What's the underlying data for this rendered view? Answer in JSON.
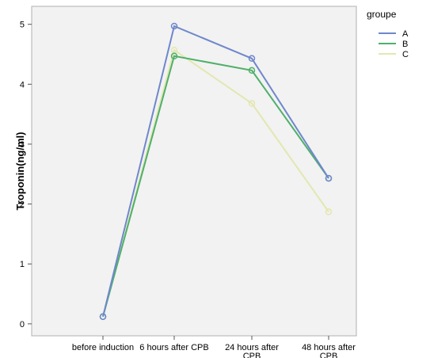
{
  "chart_data": {
    "type": "line",
    "title": "",
    "xlabel": "",
    "ylabel": "Troponin(ng/ml)",
    "categories": [
      "before induction",
      "6 hours after CPB",
      "24 hours after CPB",
      "48 hours after CPB"
    ],
    "ylim": [
      -0.2,
      5.3
    ],
    "yticks": [
      0,
      1,
      2,
      3,
      4,
      5
    ],
    "grid": false,
    "legend": {
      "title": "groupe",
      "placement": "top-right"
    },
    "series": [
      {
        "name": "A",
        "color": "#6f87cc",
        "values": [
          0.12,
          4.97,
          4.43,
          2.43
        ]
      },
      {
        "name": "B",
        "color": "#4fb06a",
        "values": [
          0.12,
          4.47,
          4.23,
          2.43
        ]
      },
      {
        "name": "C",
        "color": "#e3e7b0",
        "values": [
          0.12,
          4.57,
          3.68,
          1.87
        ]
      }
    ]
  }
}
